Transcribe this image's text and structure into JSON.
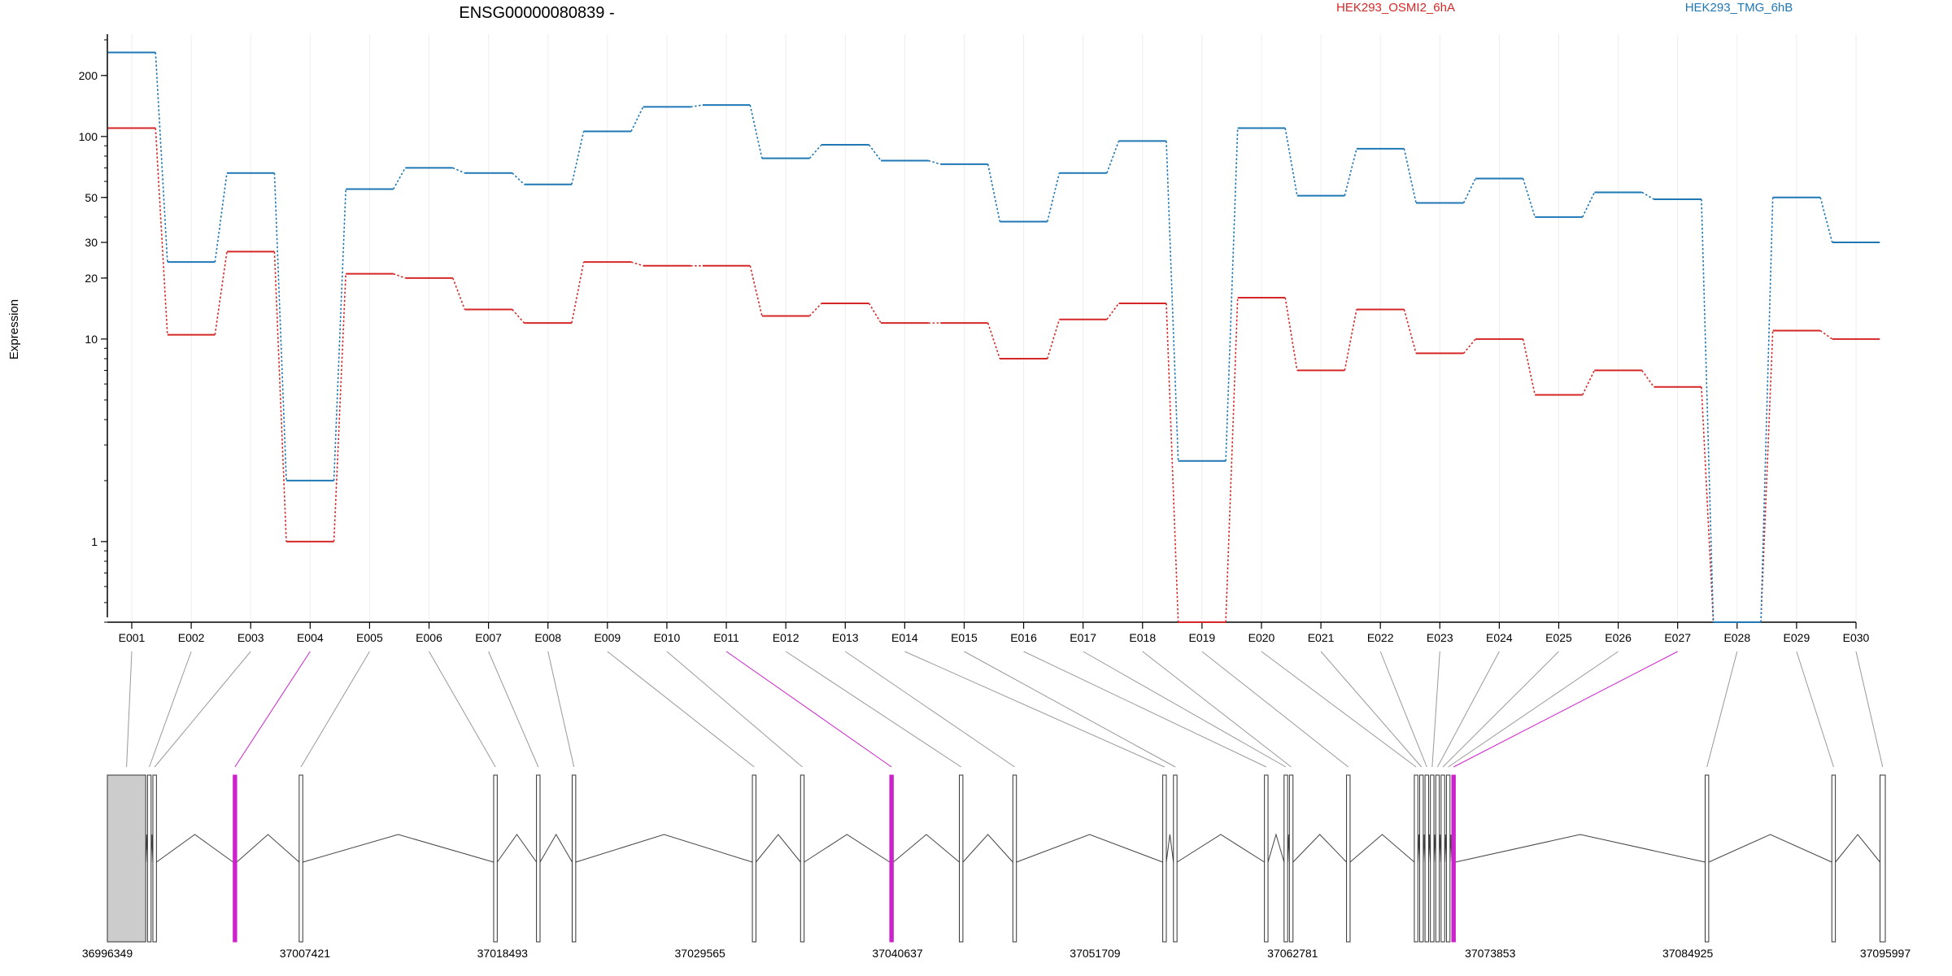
{
  "chart_data": {
    "type": "line",
    "title": "ENSG00000080839 -",
    "ylabel": "Expression",
    "xlabel": "",
    "yscale": "log",
    "ylim": [
      0.4,
      320
    ],
    "yticks": [
      1,
      10,
      20,
      30,
      50,
      100,
      200
    ],
    "categories": [
      "E001",
      "E002",
      "E003",
      "E004",
      "E005",
      "E006",
      "E007",
      "E008",
      "E009",
      "E010",
      "E011",
      "E012",
      "E013",
      "E014",
      "E015",
      "E016",
      "E017",
      "E018",
      "E019",
      "E020",
      "E021",
      "E022",
      "E023",
      "E024",
      "E025",
      "E026",
      "E027",
      "E028",
      "E029",
      "E030"
    ],
    "series": [
      {
        "name": "HEK293_OSMI2_6hA",
        "color": "#d62728",
        "values": [
          110,
          10.5,
          27,
          1.0,
          21,
          20,
          14,
          12,
          24,
          23,
          23,
          13,
          15,
          12,
          12,
          8,
          12.5,
          15,
          0.4,
          16,
          7,
          14,
          8.5,
          10,
          5.3,
          7,
          5.8,
          0.4,
          11,
          10
        ]
      },
      {
        "name": "HEK293_TMG_6hB",
        "color": "#1f77b4",
        "values": [
          260,
          24,
          66,
          2.0,
          55,
          70,
          66,
          58,
          106,
          140,
          143,
          78,
          91,
          76,
          73,
          38,
          66,
          95,
          2.5,
          110,
          51,
          87,
          47,
          62,
          40,
          53,
          49,
          0.4,
          50,
          30
        ]
      }
    ],
    "legend_placement": "top",
    "grid": "vertical",
    "gene_model": {
      "coordinate_ticks": [
        "36996349",
        "37007421",
        "37018493",
        "37029565",
        "37040637",
        "37051709",
        "37062781",
        "37073853",
        "37084925",
        "37095997"
      ],
      "coord_min": 36996349,
      "coord_max": 37095997,
      "highlight_color": "#cc22cc",
      "highlighted_exons": [
        "E004",
        "E011",
        "E027"
      ],
      "exon_positions": [
        [
          36996349,
          36998500
        ],
        [
          36998600,
          36998800
        ],
        [
          36998900,
          36999100
        ],
        [
          37003400,
          37003600
        ],
        [
          37007100,
          37007300
        ],
        [
          37018000,
          37018200
        ],
        [
          37020400,
          37020600
        ],
        [
          37022400,
          37022600
        ],
        [
          37032500,
          37032700
        ],
        [
          37035200,
          37035400
        ],
        [
          37040200,
          37040400
        ],
        [
          37044100,
          37044300
        ],
        [
          37047100,
          37047300
        ],
        [
          37055500,
          37055700
        ],
        [
          37056100,
          37056300
        ],
        [
          37061200,
          37061400
        ],
        [
          37062300,
          37062500
        ],
        [
          37062600,
          37062800
        ],
        [
          37065800,
          37066000
        ],
        [
          37069600,
          37069800
        ],
        [
          37069900,
          37070100
        ],
        [
          37070200,
          37070400
        ],
        [
          37070500,
          37070700
        ],
        [
          37070800,
          37071000
        ],
        [
          37071100,
          37071300
        ],
        [
          37071400,
          37071600
        ],
        [
          37071700,
          37071900
        ],
        [
          37085900,
          37086100
        ],
        [
          37093000,
          37093200
        ],
        [
          37095700,
          37095997
        ]
      ]
    }
  }
}
